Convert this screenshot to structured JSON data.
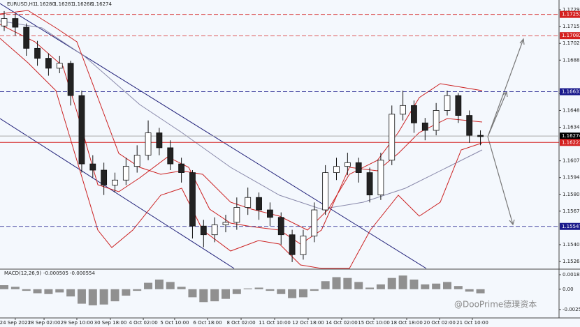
{
  "chart_data": {
    "type": "candlestick",
    "symbol": "EURUSD,H1",
    "quote": [
      "1.16280",
      "1.16281",
      "1.16268",
      "1.16274"
    ],
    "open": [
      1.1716,
      1.1722,
      1.1715,
      1.1698,
      1.169,
      1.1682,
      1.1686,
      1.166,
      1.1605,
      1.16,
      1.1588,
      1.1592,
      1.1603,
      1.1612,
      1.163,
      1.1618,
      1.1605,
      1.1598,
      1.1555,
      1.1548,
      1.1556,
      1.1558,
      1.157,
      1.1578,
      1.1568,
      1.1562,
      1.1548,
      1.1532,
      1.1547,
      1.1568,
      1.1598,
      1.1603,
      1.1606,
      1.1598,
      1.158,
      1.1608,
      1.1645,
      1.1652,
      1.1638,
      1.1632,
      1.1648,
      1.166,
      1.1644,
      1.1628
    ],
    "high": [
      1.1728,
      1.1726,
      1.1718,
      1.1704,
      1.1694,
      1.1692,
      1.1688,
      1.1664,
      1.1612,
      1.1606,
      1.1598,
      1.161,
      1.162,
      1.164,
      1.1634,
      1.1624,
      1.161,
      1.16,
      1.156,
      1.1562,
      1.1564,
      1.1578,
      1.1586,
      1.1582,
      1.1574,
      1.1566,
      1.1552,
      1.1552,
      1.1574,
      1.1604,
      1.161,
      1.1614,
      1.161,
      1.1602,
      1.1614,
      1.1652,
      1.1664,
      1.1656,
      1.1642,
      1.1654,
      1.1664,
      1.1662,
      1.1648,
      1.1632
    ],
    "low": [
      1.1712,
      1.1708,
      1.1692,
      1.1684,
      1.1676,
      1.1678,
      1.1652,
      1.1598,
      1.1594,
      1.158,
      1.1582,
      1.1588,
      1.1598,
      1.1608,
      1.1612,
      1.16,
      1.159,
      1.1545,
      1.1538,
      1.1542,
      1.155,
      1.1552,
      1.1564,
      1.156,
      1.1555,
      1.154,
      1.1526,
      1.1528,
      1.1542,
      1.1564,
      1.1592,
      1.1596,
      1.159,
      1.1574,
      1.1576,
      1.1604,
      1.164,
      1.163,
      1.1624,
      1.1628,
      1.1644,
      1.1638,
      1.1622,
      1.162
    ],
    "close": [
      1.1722,
      1.1715,
      1.1698,
      1.169,
      1.1682,
      1.1686,
      1.166,
      1.1605,
      1.16,
      1.1588,
      1.1592,
      1.1603,
      1.1612,
      1.163,
      1.1618,
      1.1605,
      1.1598,
      1.1555,
      1.1548,
      1.1556,
      1.1558,
      1.157,
      1.1578,
      1.1568,
      1.1562,
      1.1548,
      1.1532,
      1.1547,
      1.1568,
      1.1598,
      1.1603,
      1.1606,
      1.1598,
      1.158,
      1.1608,
      1.1645,
      1.1652,
      1.1638,
      1.1632,
      1.1648,
      1.166,
      1.1644,
      1.1628,
      1.1627
    ],
    "ylim": [
      1.15209,
      1.17369
    ],
    "yticks": [
      {
        "value": 1.1729,
        "label": "1.17290"
      },
      1.17155,
      {
        "value": 1.1702,
        "label": "1.17020"
      },
      1.16885,
      1.16615,
      {
        "value": 1.1648,
        "label": "1.16480"
      },
      1.16345,
      1.16075,
      {
        "value": 1.1594,
        "label": "1.15940"
      },
      1.15805,
      {
        "value": 1.1567,
        "label": "1.15670"
      },
      {
        "value": 1.154,
        "label": "1.15400"
      },
      1.15265
    ],
    "price_lines": [
      {
        "value": 1.17253,
        "color": "#d42020",
        "dash": true
      },
      {
        "value": 1.17082,
        "color": "#d42020",
        "dash": true
      },
      {
        "value": 1.16631,
        "color": "#1a1a8c",
        "dash": true
      },
      {
        "value": 1.16274,
        "color": "#000000",
        "dash": false
      },
      {
        "value": 1.16223,
        "color": "#d42020",
        "dash": false
      },
      {
        "value": 1.15547,
        "color": "#1a1a8c",
        "dash": true
      }
    ],
    "xticks": [
      {
        "value": 1.0,
        "label": "24 Sep 2021"
      },
      {
        "value": 3.6,
        "label": "28 Sep 02:00"
      },
      {
        "value": 6.56,
        "label": "29 Sep 10:00"
      },
      {
        "value": 9.59,
        "label": "30 Sep 18:00"
      },
      {
        "value": 12.56,
        "label": "4 Oct 02:00"
      },
      {
        "value": 15.39,
        "label": "5 Oct 10:00"
      },
      {
        "value": 18.36,
        "label": "6 Oct 18:00"
      },
      {
        "value": 21.39,
        "label": "8 Oct 02:00"
      },
      {
        "value": 24.42,
        "label": "11 Oct 10:00"
      },
      {
        "value": 27.44,
        "label": "12 Oct 18:00"
      },
      {
        "value": 30.47,
        "label": "14 Oct 02:00"
      },
      {
        "value": 33.38,
        "label": "15 Oct 10:00"
      },
      {
        "value": 36.34,
        "label": "18 Oct 18:00"
      },
      {
        "value": 39.31,
        "label": "20 Oct 02:00"
      },
      {
        "value": 42.27,
        "label": "21 Oct 10:00"
      }
    ],
    "macd": {
      "title": "MACD(12,26,9)",
      "readout": [
        "-0.000505",
        "-0.000554"
      ],
      "color": "#909090",
      "values": [
        0.0005,
        0.0003,
        -0.0002,
        -0.0005,
        -0.0006,
        -0.0004,
        -0.0009,
        -0.0018,
        -0.002,
        -0.0019,
        -0.0015,
        -0.0008,
        -0.0002,
        0.0008,
        0.0012,
        0.0009,
        0.0003,
        -0.001,
        -0.0016,
        -0.0015,
        -0.0012,
        -0.0006,
        0.0001,
        0.0002,
        -0.0002,
        -0.0006,
        -0.0011,
        -0.001,
        -0.0002,
        0.001,
        0.0015,
        0.0014,
        0.0009,
        0.0002,
        0.0006,
        0.0014,
        0.0017,
        0.0012,
        0.0006,
        0.0007,
        0.0009,
        0.0004,
        -0.0003,
        -0.000505
      ],
      "ylim": [
        -0.003568,
        0.002323
      ],
      "yticks": [
        0.001803,
        {
          "value": 0,
          "label": "0.00"
        },
        -0.002529
      ]
    },
    "watermark": "@DooPrime德璞资本"
  }
}
